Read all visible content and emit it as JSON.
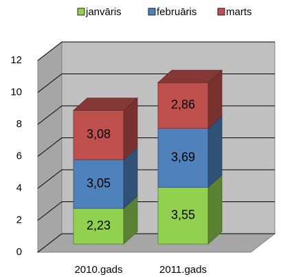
{
  "chart_data": {
    "type": "bar3d_stacked",
    "categories": [
      "2010.gads",
      "2011.gads"
    ],
    "series": [
      {
        "name": "janvāris",
        "color": "#92d050",
        "values": [
          2.23,
          3.55
        ],
        "value_labels": [
          "2,23",
          "3,55"
        ]
      },
      {
        "name": "februāris",
        "color": "#4f81bd",
        "values": [
          3.05,
          3.69
        ],
        "value_labels": [
          "3,05",
          "3,69"
        ]
      },
      {
        "name": "marts",
        "color": "#c0504d",
        "values": [
          3.08,
          2.86
        ],
        "value_labels": [
          "3,08",
          "2,86"
        ]
      }
    ],
    "ylim": [
      0,
      12
    ],
    "yticks": [
      0,
      2,
      4,
      6,
      8,
      10,
      12
    ],
    "grid": true,
    "legend": "top"
  }
}
